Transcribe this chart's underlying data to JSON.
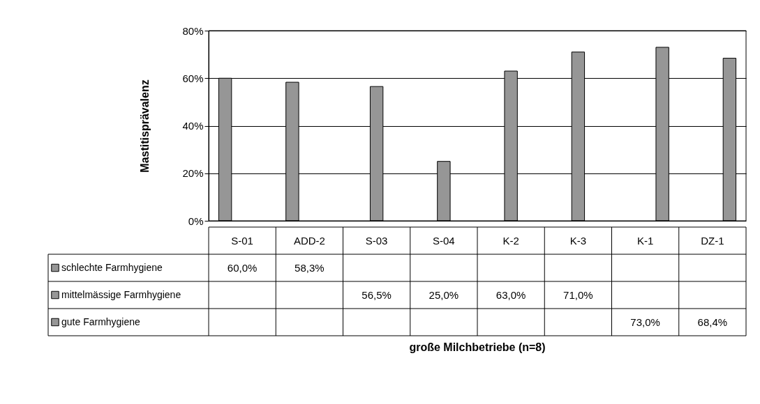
{
  "chart_data": {
    "type": "bar",
    "ylabel": "Mastitisprävalenz",
    "annotations": [
      "große Milchbetriebe (n=8)"
    ],
    "categories": [
      "S-01",
      "ADD-2",
      "S-03",
      "S-04",
      "K-2",
      "K-3",
      "K-1",
      "DZ-1"
    ],
    "series": [
      {
        "name": "schlechte Farmhygiene",
        "color": "#969696",
        "values": [
          60.0,
          58.3,
          null,
          null,
          null,
          null,
          null,
          null
        ],
        "value_labels": [
          "60,0%",
          "58,3%",
          null,
          null,
          null,
          null,
          null,
          null
        ]
      },
      {
        "name": "mittelmässige Farmhygiene",
        "color": "#969696",
        "values": [
          null,
          null,
          56.5,
          25.0,
          63.0,
          71.0,
          null,
          null
        ],
        "value_labels": [
          null,
          null,
          "56,5%",
          "25,0%",
          "63,0%",
          "71,0%",
          null,
          null
        ]
      },
      {
        "name": "gute Farmhygiene",
        "color": "#969696",
        "values": [
          null,
          null,
          null,
          null,
          null,
          null,
          73.0,
          68.4
        ],
        "value_labels": [
          null,
          null,
          null,
          null,
          null,
          null,
          "73,0%",
          "68,4%"
        ]
      }
    ],
    "ylim": [
      0,
      80
    ],
    "yticks": [
      {
        "value": 0,
        "label": "0%"
      },
      {
        "value": 20,
        "label": "20%"
      },
      {
        "value": 40,
        "label": "40%"
      },
      {
        "value": 60,
        "label": "60%"
      },
      {
        "value": 80,
        "label": "80%"
      }
    ],
    "grid": "y",
    "legend": "bottom left"
  }
}
